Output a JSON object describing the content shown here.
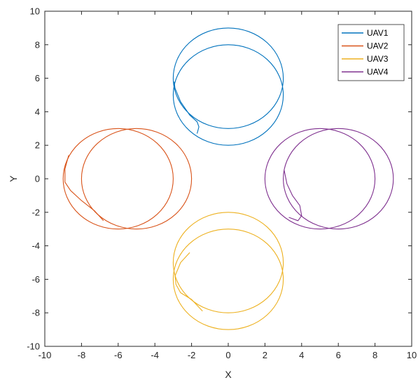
{
  "chart_data": {
    "type": "line",
    "title": "",
    "xlabel": "X",
    "ylabel": "Y",
    "xlim": [
      -10,
      10
    ],
    "ylim": [
      -10,
      10
    ],
    "xticks": [
      "-10",
      "-8",
      "-6",
      "-4",
      "-2",
      "0",
      "2",
      "4",
      "6",
      "8",
      "10"
    ],
    "yticks": [
      "10",
      "8",
      "6",
      "4",
      "2",
      "0",
      "-2",
      "-4",
      "-6",
      "-8",
      "-10"
    ],
    "grid": false,
    "legend_position": "top-right",
    "series": [
      {
        "name": "UAV1",
        "color": "#0072BD",
        "start": [
          -1.7,
          2.7
        ],
        "circles": [
          {
            "center": [
              0,
              5
            ],
            "radius": 3
          },
          {
            "center": [
              0,
              6
            ],
            "radius": 3
          }
        ],
        "transient": [
          [
            -1.7,
            2.7
          ],
          [
            -1.6,
            3.1
          ],
          [
            -1.7,
            3.4
          ],
          [
            -2.1,
            3.8
          ],
          [
            -2.6,
            4.6
          ],
          [
            -2.9,
            5.4
          ],
          [
            -2.95,
            5.8
          ]
        ]
      },
      {
        "name": "UAV2",
        "color": "#D95319",
        "start": [
          -6.8,
          -2.5
        ],
        "circles": [
          {
            "center": [
              -6,
              0
            ],
            "radius": 3
          },
          {
            "center": [
              -5,
              0
            ],
            "radius": 3
          }
        ],
        "transient": [
          [
            -6.8,
            -2.5
          ],
          [
            -7.3,
            -1.9
          ],
          [
            -8.0,
            -1.3
          ],
          [
            -8.6,
            -0.7
          ],
          [
            -8.9,
            -0.2
          ],
          [
            -8.9,
            0.6
          ],
          [
            -8.7,
            1.4
          ]
        ]
      },
      {
        "name": "UAV3",
        "color": "#EDB120",
        "start": [
          -1.4,
          -7.9
        ],
        "circles": [
          {
            "center": [
              0,
              -6
            ],
            "radius": 3
          },
          {
            "center": [
              0,
              -5
            ],
            "radius": 3
          }
        ],
        "transient": [
          [
            -1.4,
            -7.9
          ],
          [
            -2.0,
            -7.2
          ],
          [
            -2.6,
            -6.8
          ],
          [
            -2.85,
            -6.3
          ],
          [
            -2.9,
            -5.8
          ],
          [
            -2.6,
            -5.0
          ],
          [
            -2.1,
            -4.4
          ]
        ]
      },
      {
        "name": "UAV4",
        "color": "#7E2F8E",
        "start": [
          3.3,
          -2.3
        ],
        "circles": [
          {
            "center": [
              5,
              0
            ],
            "radius": 3
          },
          {
            "center": [
              6,
              0
            ],
            "radius": 3
          }
        ],
        "transient": [
          [
            3.3,
            -2.3
          ],
          [
            3.8,
            -2.5
          ],
          [
            4.0,
            -2.2
          ],
          [
            3.9,
            -1.6
          ],
          [
            3.5,
            -1.0
          ],
          [
            3.2,
            -0.3
          ],
          [
            3.05,
            0.5
          ]
        ]
      }
    ]
  }
}
